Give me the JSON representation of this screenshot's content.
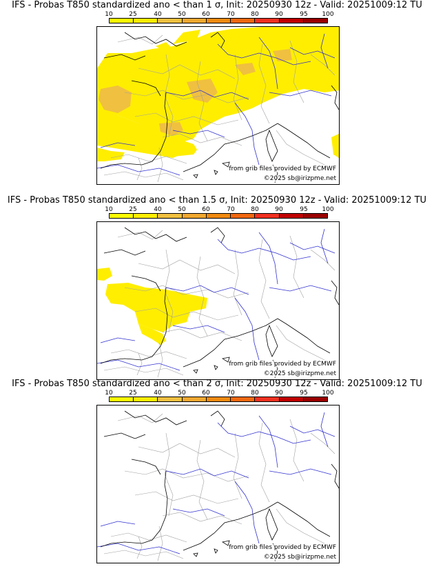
{
  "colors": {
    "scale": [
      "#ffff00",
      "#ffee00",
      "#f0c040",
      "#f0a830",
      "#f08a10",
      "#f06810",
      "#f03020",
      "#c00000",
      "#9a0000",
      "#6a0000"
    ],
    "prob_light": "#ffee00",
    "prob_mid": "#f0c040",
    "coast": "#000000",
    "rivers": "#3030d0",
    "borders": "#a0a0a0"
  },
  "scale_labels": [
    "10",
    "25",
    "40",
    "50",
    "60",
    "70",
    "80",
    "90",
    "95",
    "100"
  ],
  "credit_source": "from grib files provided by ECMWF",
  "credit_copyright": "©2025 sb@irizpme.net",
  "panels": [
    {
      "title": "IFS - Probas T850  standardized ano < than 1 σ, Init: 20250930 12z - Valid: 20251009:12 TU"
    },
    {
      "title": "IFS - Probas T850  standardized ano < than 1.5 σ, Init: 20250930 12z - Valid: 20251009:12 TU"
    },
    {
      "title": "IFS - Probas T850  standardized ano < than 2 σ, Init: 20250930 12z - Valid: 20251009:12 TU"
    }
  ]
}
